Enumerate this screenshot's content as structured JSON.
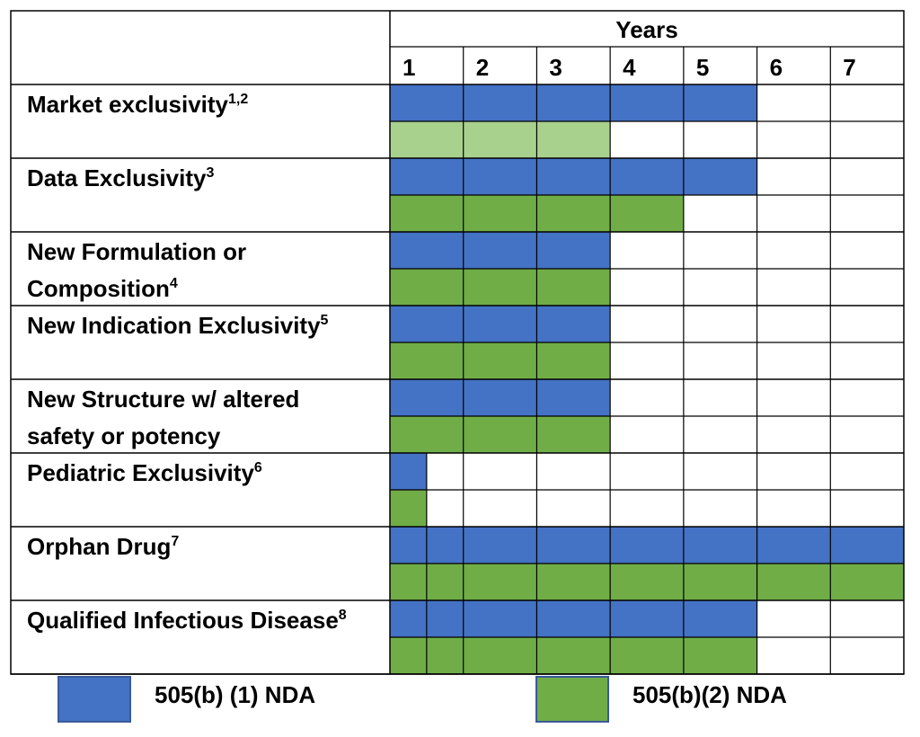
{
  "chart_data": {
    "type": "table",
    "header": "Years",
    "years": [
      "1",
      "2",
      "3",
      "4",
      "5",
      "6",
      "7"
    ],
    "colors": {
      "505b1": "#4472c4",
      "505b2": "#70ad47",
      "505b2_light": "#a9d18e",
      "grid": "#000000"
    },
    "rows": [
      {
        "label": "Market exclusivity",
        "sup": "1,2",
        "b1_years": 5,
        "b2_years": 3,
        "b2_light": true
      },
      {
        "label": "Data Exclusivity",
        "sup": "3",
        "b1_years": 5,
        "b2_years": 4
      },
      {
        "label": "New Formulation or Composition",
        "lines": [
          "New Formulation or",
          "Composition"
        ],
        "sup": "4",
        "b1_years": 3,
        "b2_years": 3
      },
      {
        "label": "New Indication Exclusivity",
        "sup": "5",
        "b1_years": 3,
        "b2_years": 3
      },
      {
        "label": "New Structure w/ altered safety or potency",
        "lines": [
          "New Structure w/ altered",
          "safety or potency"
        ],
        "sup": "",
        "b1_years": 3,
        "b2_years": 3
      },
      {
        "label": "Pediatric Exclusivity",
        "sup": "6",
        "b1_years": 0.5,
        "b2_years": 0.5
      },
      {
        "label": "Orphan Drug",
        "sup": "7",
        "b1_years": 7,
        "b2_years": 7
      },
      {
        "label": "Qualified Infectious Disease",
        "sup": "8",
        "b1_years": 5,
        "b2_years": 5
      }
    ]
  },
  "legend": {
    "b1": "505(b) (1) NDA",
    "b2": "505(b)(2) NDA"
  }
}
